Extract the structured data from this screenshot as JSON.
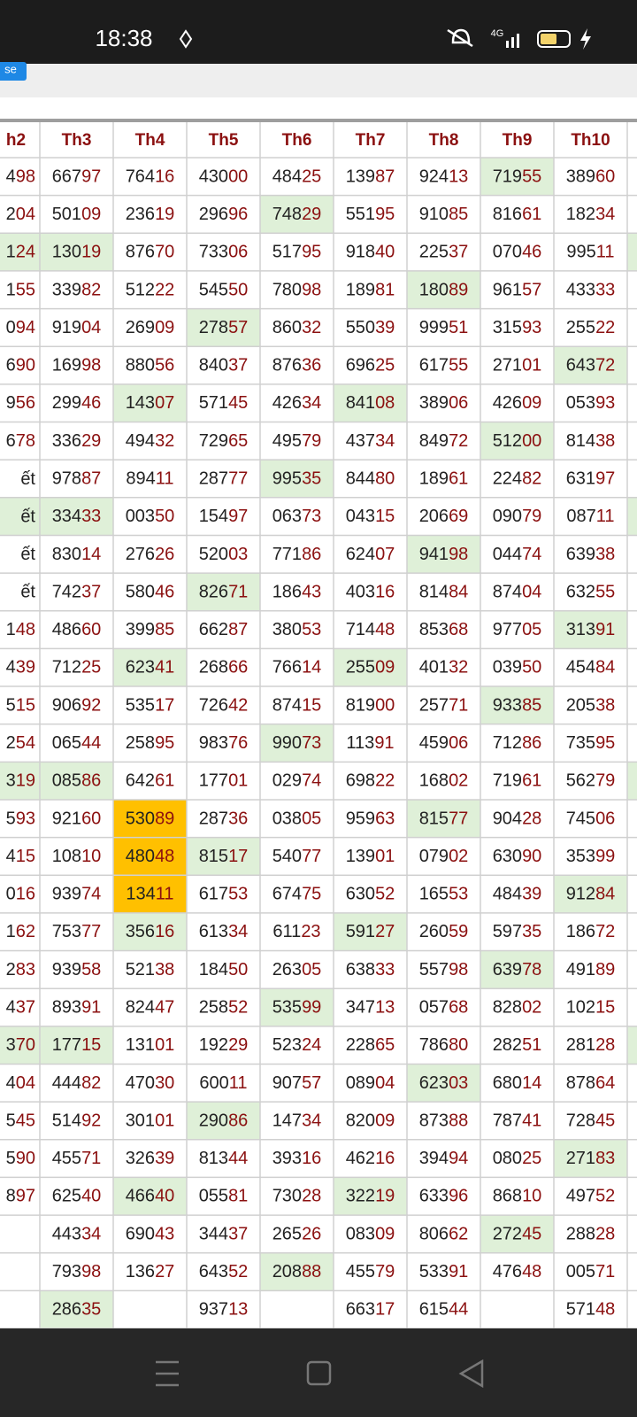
{
  "status_bar": {
    "time": "18:38",
    "network": "4G"
  },
  "toolbar": {
    "button": "se"
  },
  "table": {
    "headers": [
      "h2",
      "Th3",
      "Th4",
      "Th5",
      "Th6",
      "Th7",
      "Th8",
      "Th9",
      "Th10"
    ],
    "rows": [
      [
        "498",
        "66797",
        "76416",
        "43000",
        "48425",
        "13987",
        "92413",
        "71955",
        "38960"
      ],
      [
        "204",
        "50109",
        "23619",
        "29696",
        "74829",
        "55195",
        "91085",
        "81661",
        "18234"
      ],
      [
        "124",
        "13019",
        "87670",
        "73306",
        "51795",
        "91840",
        "22537",
        "07046",
        "99511"
      ],
      [
        "155",
        "33982",
        "51222",
        "54550",
        "78098",
        "18981",
        "18089",
        "96157",
        "43333"
      ],
      [
        "094",
        "91904",
        "26909",
        "27857",
        "86032",
        "55039",
        "99951",
        "31593",
        "25522"
      ],
      [
        "690",
        "16998",
        "88056",
        "84037",
        "87636",
        "69625",
        "61755",
        "27101",
        "64372"
      ],
      [
        "956",
        "29946",
        "14307",
        "57145",
        "42634",
        "84108",
        "38906",
        "42609",
        "05393"
      ],
      [
        "678",
        "33629",
        "49432",
        "72965",
        "49579",
        "43734",
        "84972",
        "51200",
        "81438"
      ],
      [
        "ết",
        "97887",
        "89411",
        "28777",
        "99535",
        "84480",
        "18961",
        "22482",
        "63197"
      ],
      [
        "ết",
        "33433",
        "00350",
        "15497",
        "06373",
        "04315",
        "20669",
        "09079",
        "08711"
      ],
      [
        "ết",
        "83014",
        "27626",
        "52003",
        "77186",
        "62407",
        "94198",
        "04474",
        "63938"
      ],
      [
        "ết",
        "74237",
        "58046",
        "82671",
        "18643",
        "40316",
        "81484",
        "87404",
        "63255"
      ],
      [
        "148",
        "48660",
        "39985",
        "66287",
        "38053",
        "71448",
        "85368",
        "97705",
        "31391"
      ],
      [
        "439",
        "71225",
        "62341",
        "26866",
        "76614",
        "25509",
        "40132",
        "03950",
        "45484"
      ],
      [
        "515",
        "90692",
        "53517",
        "72642",
        "87415",
        "81900",
        "25771",
        "93385",
        "20538"
      ],
      [
        "254",
        "06544",
        "25895",
        "98376",
        "99073",
        "11391",
        "45906",
        "71286",
        "73595"
      ],
      [
        "319",
        "08586",
        "64261",
        "17701",
        "02974",
        "69822",
        "16802",
        "71961",
        "56279"
      ],
      [
        "593",
        "92160",
        "53089",
        "28736",
        "03805",
        "95963",
        "81577",
        "90428",
        "74506"
      ],
      [
        "415",
        "10810",
        "48048",
        "81517",
        "54077",
        "13901",
        "07902",
        "63090",
        "35399"
      ],
      [
        "016",
        "93974",
        "13411",
        "61753",
        "67475",
        "63052",
        "16553",
        "48439",
        "91284"
      ],
      [
        "162",
        "75377",
        "35616",
        "61334",
        "61123",
        "59127",
        "26059",
        "59735",
        "18672"
      ],
      [
        "283",
        "93958",
        "52138",
        "18450",
        "26305",
        "63833",
        "55798",
        "63978",
        "49189"
      ],
      [
        "437",
        "89391",
        "82447",
        "25852",
        "53599",
        "34713",
        "05768",
        "82802",
        "10215"
      ],
      [
        "370",
        "17715",
        "13101",
        "19229",
        "52324",
        "22865",
        "78680",
        "28251",
        "28128"
      ],
      [
        "404",
        "44482",
        "47030",
        "60011",
        "90757",
        "08904",
        "62303",
        "68014",
        "87864"
      ],
      [
        "545",
        "51492",
        "30101",
        "29086",
        "14734",
        "82009",
        "87388",
        "78741",
        "72845"
      ],
      [
        "590",
        "45571",
        "32639",
        "81344",
        "39316",
        "46216",
        "39494",
        "08025",
        "27183"
      ],
      [
        "897",
        "62540",
        "46640",
        "05581",
        "73028",
        "32219",
        "63396",
        "86810",
        "49752"
      ],
      [
        null,
        "44334",
        "69043",
        "34437",
        "26526",
        "08309",
        "80662",
        "27245",
        "28828"
      ],
      [
        null,
        "79398",
        "13627",
        "64352",
        "20888",
        "45579",
        "53391",
        "47648",
        "00571"
      ],
      [
        null,
        "28635",
        null,
        "93713",
        null,
        "66317",
        "61544",
        null,
        "57148"
      ]
    ],
    "highlights": [
      {
        "row": 0,
        "col": 7,
        "color": "#dff0d8"
      },
      {
        "row": 1,
        "col": 4,
        "color": "#dff0d8"
      },
      {
        "row": 2,
        "col": 0,
        "color": "#dff0d8"
      },
      {
        "row": 2,
        "col": 1,
        "color": "#dff0d8"
      },
      {
        "row": 2,
        "col": 9,
        "color": "#dff0d8"
      },
      {
        "row": 3,
        "col": 6,
        "color": "#dff0d8"
      },
      {
        "row": 4,
        "col": 3,
        "color": "#dff0d8"
      },
      {
        "row": 5,
        "col": 8,
        "color": "#dff0d8"
      },
      {
        "row": 6,
        "col": 2,
        "color": "#dff0d8"
      },
      {
        "row": 6,
        "col": 5,
        "color": "#dff0d8"
      },
      {
        "row": 7,
        "col": 7,
        "color": "#dff0d8"
      },
      {
        "row": 8,
        "col": 4,
        "color": "#dff0d8"
      },
      {
        "row": 9,
        "col": 0,
        "color": "#dff0d8"
      },
      {
        "row": 9,
        "col": 1,
        "color": "#dff0d8"
      },
      {
        "row": 9,
        "col": 9,
        "color": "#dff0d8"
      },
      {
        "row": 10,
        "col": 6,
        "color": "#dff0d8"
      },
      {
        "row": 11,
        "col": 3,
        "color": "#dff0d8"
      },
      {
        "row": 12,
        "col": 8,
        "color": "#dff0d8"
      },
      {
        "row": 13,
        "col": 2,
        "color": "#dff0d8"
      },
      {
        "row": 13,
        "col": 5,
        "color": "#dff0d8"
      },
      {
        "row": 14,
        "col": 7,
        "color": "#dff0d8"
      },
      {
        "row": 15,
        "col": 4,
        "color": "#dff0d8"
      },
      {
        "row": 16,
        "col": 0,
        "color": "#dff0d8"
      },
      {
        "row": 16,
        "col": 1,
        "color": "#dff0d8"
      },
      {
        "row": 16,
        "col": 9,
        "color": "#dff0d8"
      },
      {
        "row": 17,
        "col": 2,
        "color": "#ffc000"
      },
      {
        "row": 17,
        "col": 6,
        "color": "#dff0d8"
      },
      {
        "row": 18,
        "col": 2,
        "color": "#ffc000"
      },
      {
        "row": 18,
        "col": 3,
        "color": "#dff0d8"
      },
      {
        "row": 19,
        "col": 2,
        "color": "#ffc000"
      },
      {
        "row": 19,
        "col": 8,
        "color": "#dff0d8"
      },
      {
        "row": 20,
        "col": 2,
        "color": "#dff0d8"
      },
      {
        "row": 20,
        "col": 5,
        "color": "#dff0d8"
      },
      {
        "row": 21,
        "col": 7,
        "color": "#dff0d8"
      },
      {
        "row": 22,
        "col": 4,
        "color": "#dff0d8"
      },
      {
        "row": 23,
        "col": 0,
        "color": "#dff0d8"
      },
      {
        "row": 23,
        "col": 1,
        "color": "#dff0d8"
      },
      {
        "row": 23,
        "col": 9,
        "color": "#dff0d8"
      },
      {
        "row": 24,
        "col": 6,
        "color": "#dff0d8"
      },
      {
        "row": 25,
        "col": 3,
        "color": "#dff0d8"
      },
      {
        "row": 26,
        "col": 8,
        "color": "#dff0d8"
      },
      {
        "row": 27,
        "col": 2,
        "color": "#dff0d8"
      },
      {
        "row": 27,
        "col": 5,
        "color": "#dff0d8"
      },
      {
        "row": 28,
        "col": 7,
        "color": "#dff0d8"
      },
      {
        "row": 29,
        "col": 4,
        "color": "#dff0d8"
      },
      {
        "row": 30,
        "col": 1,
        "color": "#dff0d8"
      }
    ]
  }
}
